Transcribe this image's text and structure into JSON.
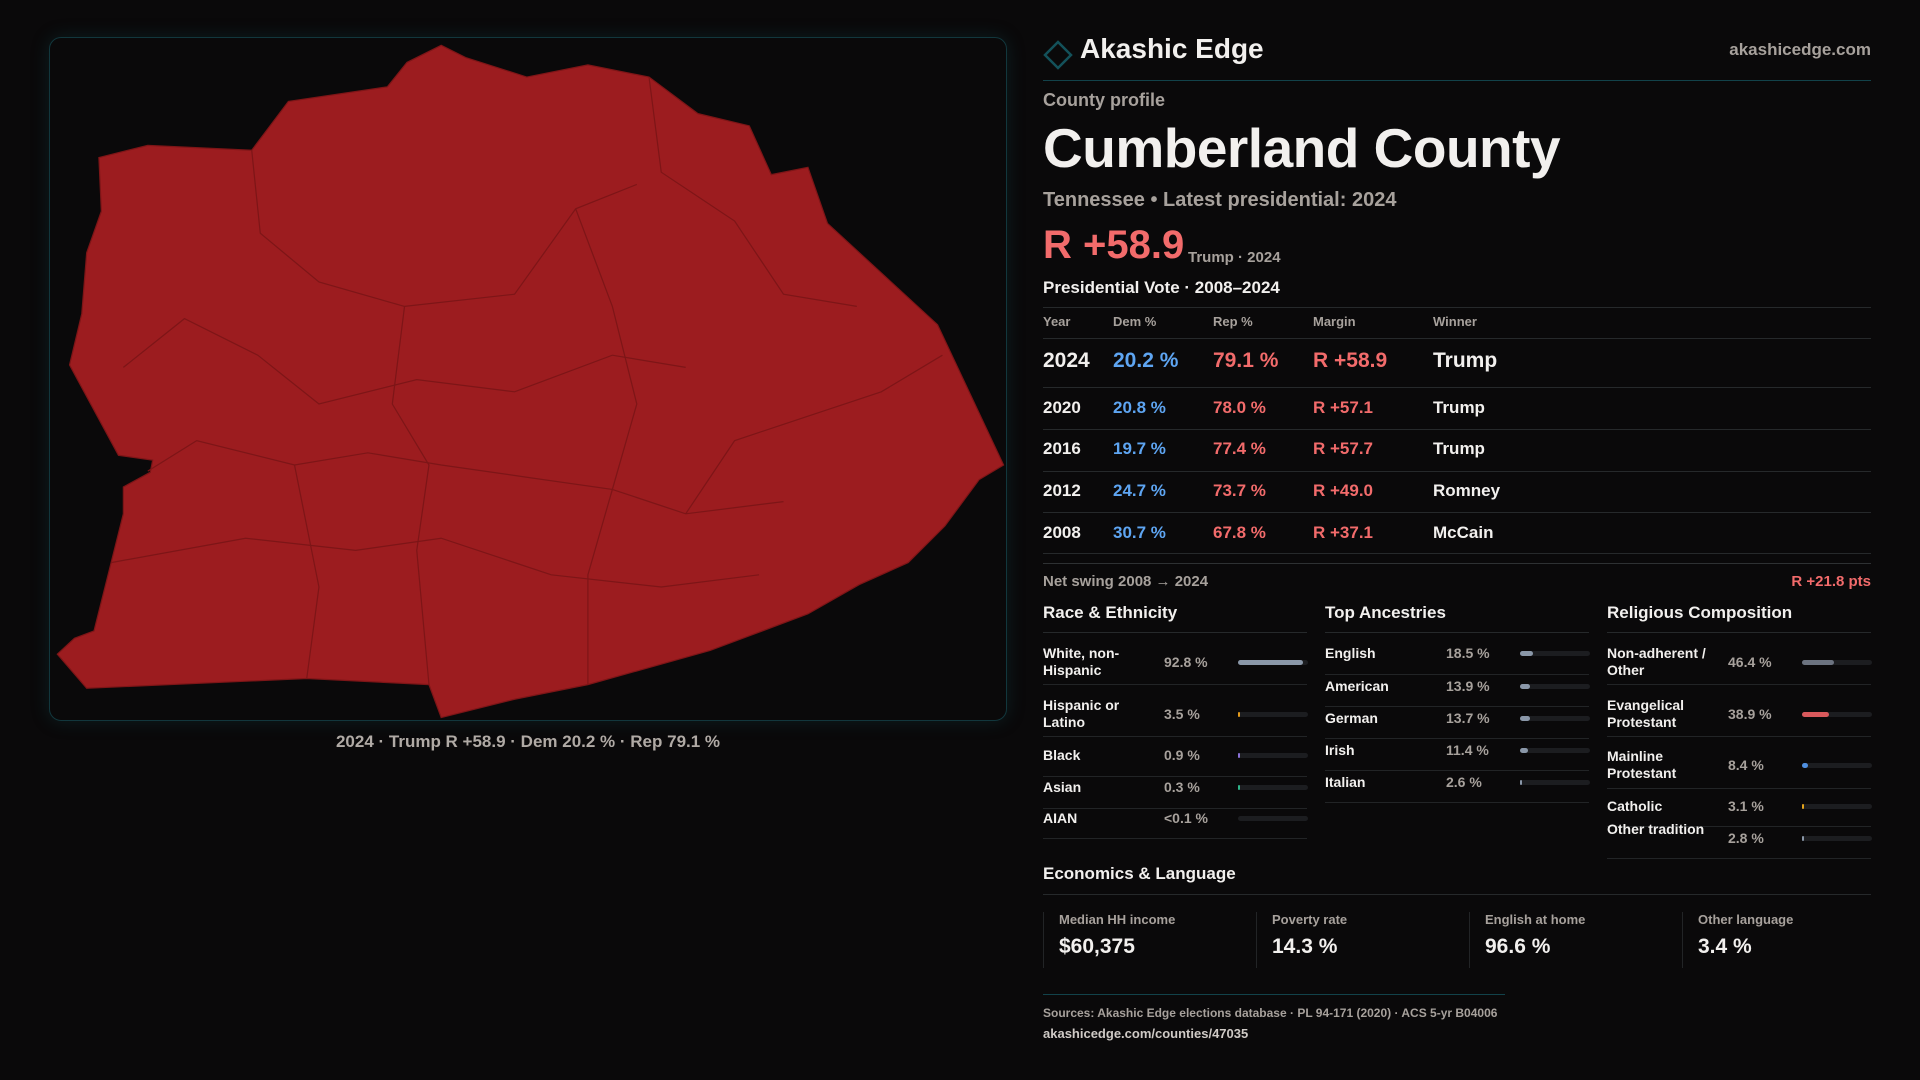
{
  "brand": {
    "name": "Akashic Edge",
    "domain": "akashicedge.com"
  },
  "profile": {
    "kicker": "County profile",
    "title": "Cumberland County",
    "subtitle": "Tennessee • Latest presidential: 2024",
    "margin": "R +58.9",
    "margin_note": "Trump · 2024"
  },
  "map": {
    "caption": "2024 · Trump R +58.9 · Dem 20.2 % · Rep 79.1 %",
    "fill": "#9c1c1f"
  },
  "votes": {
    "title": "Presidential Vote · 2008–2024",
    "headers": [
      "Year",
      "Dem %",
      "Rep %",
      "Margin",
      "Winner"
    ],
    "rows": [
      {
        "year": "2024",
        "dem": "20.2 %",
        "rep": "79.1 %",
        "margin": "R +58.9",
        "winner": "Trump"
      },
      {
        "year": "2020",
        "dem": "20.8 %",
        "rep": "78.0 %",
        "margin": "R +57.1",
        "winner": "Trump"
      },
      {
        "year": "2016",
        "dem": "19.7 %",
        "rep": "77.4 %",
        "margin": "R +57.7",
        "winner": "Trump"
      },
      {
        "year": "2012",
        "dem": "24.7 %",
        "rep": "73.7 %",
        "margin": "R +49.0",
        "winner": "Romney"
      },
      {
        "year": "2008",
        "dem": "30.7 %",
        "rep": "67.8 %",
        "margin": "R +37.1",
        "winner": "McCain"
      }
    ],
    "swing_label": "Net swing 2008 → 2024",
    "swing_value": "R +21.8 pts"
  },
  "race": {
    "title": "Race & Ethnicity",
    "items": [
      {
        "label": "White, non-Hispanic",
        "pct": "92.8 %",
        "value": 92.8,
        "color": "#8a97a8"
      },
      {
        "label": "Hispanic or Latino",
        "pct": "3.5 %",
        "value": 3.5,
        "color": "#e39a1c"
      },
      {
        "label": "Black",
        "pct": "0.9 %",
        "value": 0.9,
        "color": "#8b72d8"
      },
      {
        "label": "Asian",
        "pct": "0.3 %",
        "value": 0.3,
        "color": "#2fb58a"
      },
      {
        "label": "AIAN",
        "pct": "<0.1 %",
        "value": 0.05,
        "color": "#777"
      }
    ]
  },
  "ancestry": {
    "title": "Top Ancestries",
    "items": [
      {
        "label": "English",
        "pct": "18.5 %",
        "value": 18.5,
        "color": "#8a97a8"
      },
      {
        "label": "American",
        "pct": "13.9 %",
        "value": 13.9,
        "color": "#8a97a8"
      },
      {
        "label": "German",
        "pct": "13.7 %",
        "value": 13.7,
        "color": "#8a97a8"
      },
      {
        "label": "Irish",
        "pct": "11.4 %",
        "value": 11.4,
        "color": "#8a97a8"
      },
      {
        "label": "Italian",
        "pct": "2.6 %",
        "value": 2.6,
        "color": "#8a97a8"
      }
    ]
  },
  "religion": {
    "title": "Religious Composition",
    "items": [
      {
        "label": "Non-adherent / Other",
        "pct": "46.4 %",
        "value": 46.4,
        "color": "#6c7380"
      },
      {
        "label": "Evangelical Protestant",
        "pct": "38.9 %",
        "value": 38.9,
        "color": "#d9595c"
      },
      {
        "label": "Mainline Protestant",
        "pct": "8.4 %",
        "value": 8.4,
        "color": "#4f8fe0"
      },
      {
        "label": "Catholic",
        "pct": "3.1 %",
        "value": 3.1,
        "color": "#e3a31c"
      },
      {
        "label": "Other tradition",
        "pct": "2.8 %",
        "value": 2.8,
        "color": "#8a97a8"
      }
    ]
  },
  "economics": {
    "title": "Economics & Language",
    "cards": [
      {
        "label": "Median HH income",
        "value": "$60,375"
      },
      {
        "label": "Poverty rate",
        "value": "14.3 %"
      },
      {
        "label": "English at home",
        "value": "96.6 %"
      },
      {
        "label": "Other language",
        "value": "3.4 %"
      }
    ]
  },
  "footer": {
    "sources": "Sources: Akashic Edge elections database · PL 94-171 (2020) · ACS 5-yr B04006",
    "url": "akashicedge.com/counties/47035"
  }
}
